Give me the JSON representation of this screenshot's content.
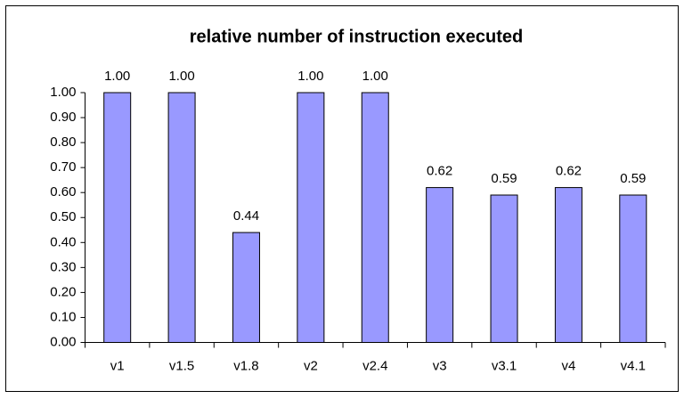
{
  "chart_data": {
    "type": "bar",
    "title": "relative number of instruction executed",
    "categories": [
      "v1",
      "v1.5",
      "v1.8",
      "v2",
      "v2.4",
      "v3",
      "v3.1",
      "v4",
      "v4.1"
    ],
    "values": [
      1,
      1,
      0.44,
      1,
      1,
      0.62,
      0.59,
      0.62,
      0.59
    ],
    "value_labels": [
      "1.00",
      "1.00",
      "0.44",
      "1.00",
      "1.00",
      "0.62",
      "0.59",
      "0.62",
      "0.59"
    ],
    "color": "#9999ff",
    "ylim": [
      0,
      1
    ],
    "yticks": [
      {
        "value": 0,
        "label": "0.00"
      },
      {
        "value": 0.1,
        "label": "0.10"
      },
      {
        "value": 0.2,
        "label": "0.20"
      },
      {
        "value": 0.3,
        "label": "0.30"
      },
      {
        "value": 0.4,
        "label": "0.40"
      },
      {
        "value": 0.5,
        "label": "0.50"
      },
      {
        "value": 0.6,
        "label": "0.60"
      },
      {
        "value": 0.7,
        "label": "0.70"
      },
      {
        "value": 0.8,
        "label": "0.80"
      },
      {
        "value": 0.9,
        "label": "0.90"
      },
      {
        "value": 1,
        "label": "1.00"
      }
    ],
    "grid": false
  }
}
